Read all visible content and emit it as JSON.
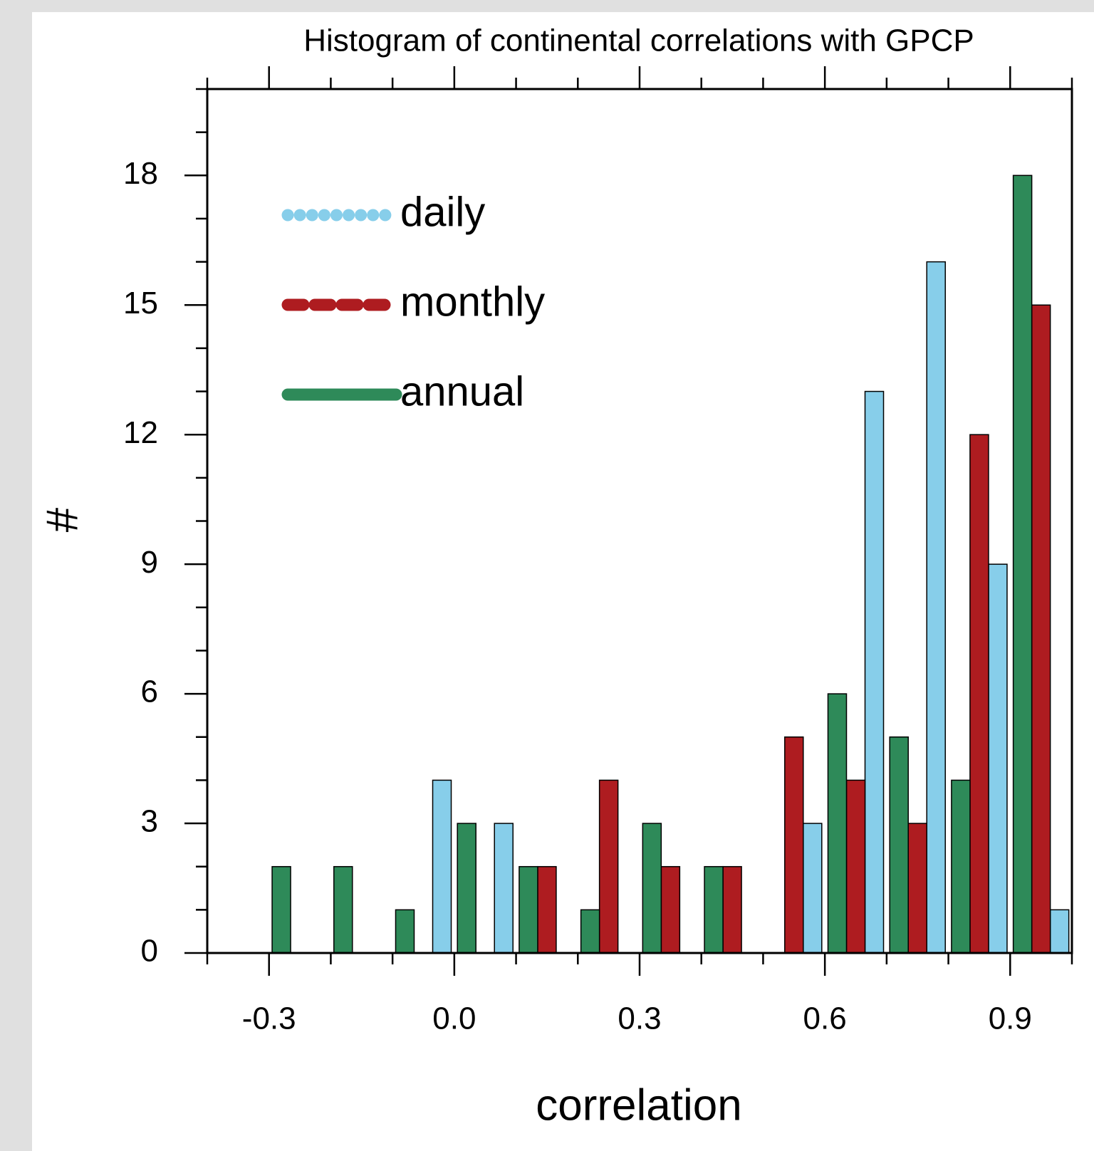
{
  "chart_data": {
    "type": "histogram",
    "title": "Histogram of continental correlations with GPCP",
    "x_label": "correlation",
    "y_label": "#",
    "bins": [
      -0.4,
      -0.3,
      -0.2,
      -0.1,
      0,
      0.1,
      0.2,
      0.3,
      0.4,
      0.5,
      0.6,
      0.7,
      0.8,
      0.9,
      1.0
    ],
    "series": [
      {
        "name": "daily",
        "color": "#87ceea",
        "line_style": "dotted",
        "values": [
          0,
          0,
          0,
          4,
          3,
          0,
          0,
          0,
          0,
          3,
          13,
          16,
          9,
          1
        ]
      },
      {
        "name": "monthly",
        "color": "#ae1c20",
        "line_style": "dashed",
        "values": [
          0,
          0,
          0,
          0,
          0,
          2,
          4,
          2,
          2,
          5,
          4,
          3,
          12,
          15
        ]
      },
      {
        "name": "annual",
        "color": "#2e8a59",
        "line_style": "solid",
        "values": [
          0,
          2,
          2,
          1,
          3,
          2,
          1,
          3,
          2,
          0,
          6,
          5,
          4,
          18
        ]
      }
    ],
    "xlim": [
      -0.4,
      1.0
    ],
    "xticks": [
      -0.3,
      {
        "value": 0,
        "label": "0.0"
      },
      0.3,
      0.6,
      0.9
    ],
    "xminorticks": [
      -0.4,
      -0.2,
      -0.1,
      0.1,
      0.2,
      0.4,
      0.5,
      0.7,
      0.8,
      1.0
    ],
    "ylim": [
      0,
      20
    ],
    "yticks": [
      0,
      3,
      6,
      9,
      12,
      15,
      18
    ],
    "yminorticks": [
      1,
      2,
      4,
      5,
      7,
      8,
      10,
      11,
      13,
      14,
      16,
      17,
      19,
      20
    ],
    "legend": "upper left"
  }
}
